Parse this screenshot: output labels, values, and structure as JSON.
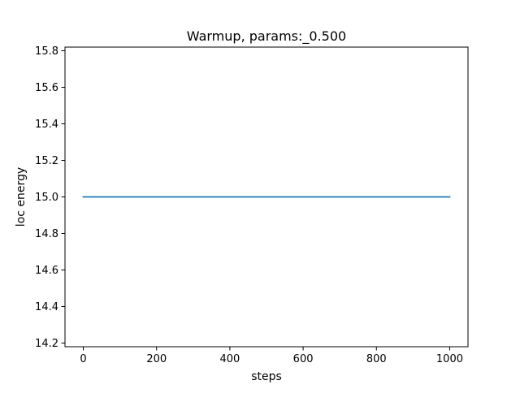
{
  "chart_data": {
    "type": "line",
    "title": "Warmup, params:_0.500",
    "xlabel": "steps",
    "ylabel": "loc energy",
    "xlim": [
      -50,
      1050
    ],
    "ylim": [
      14.18,
      15.82
    ],
    "xticks": [
      0,
      200,
      400,
      600,
      800,
      1000
    ],
    "yticks": [
      14.2,
      14.4,
      14.6,
      14.8,
      15.0,
      15.2,
      15.4,
      15.6,
      15.8
    ],
    "grid": false,
    "series": [
      {
        "color": "#1f77b4",
        "x": [
          0,
          1000
        ],
        "y": [
          15.0,
          15.0
        ]
      }
    ]
  }
}
